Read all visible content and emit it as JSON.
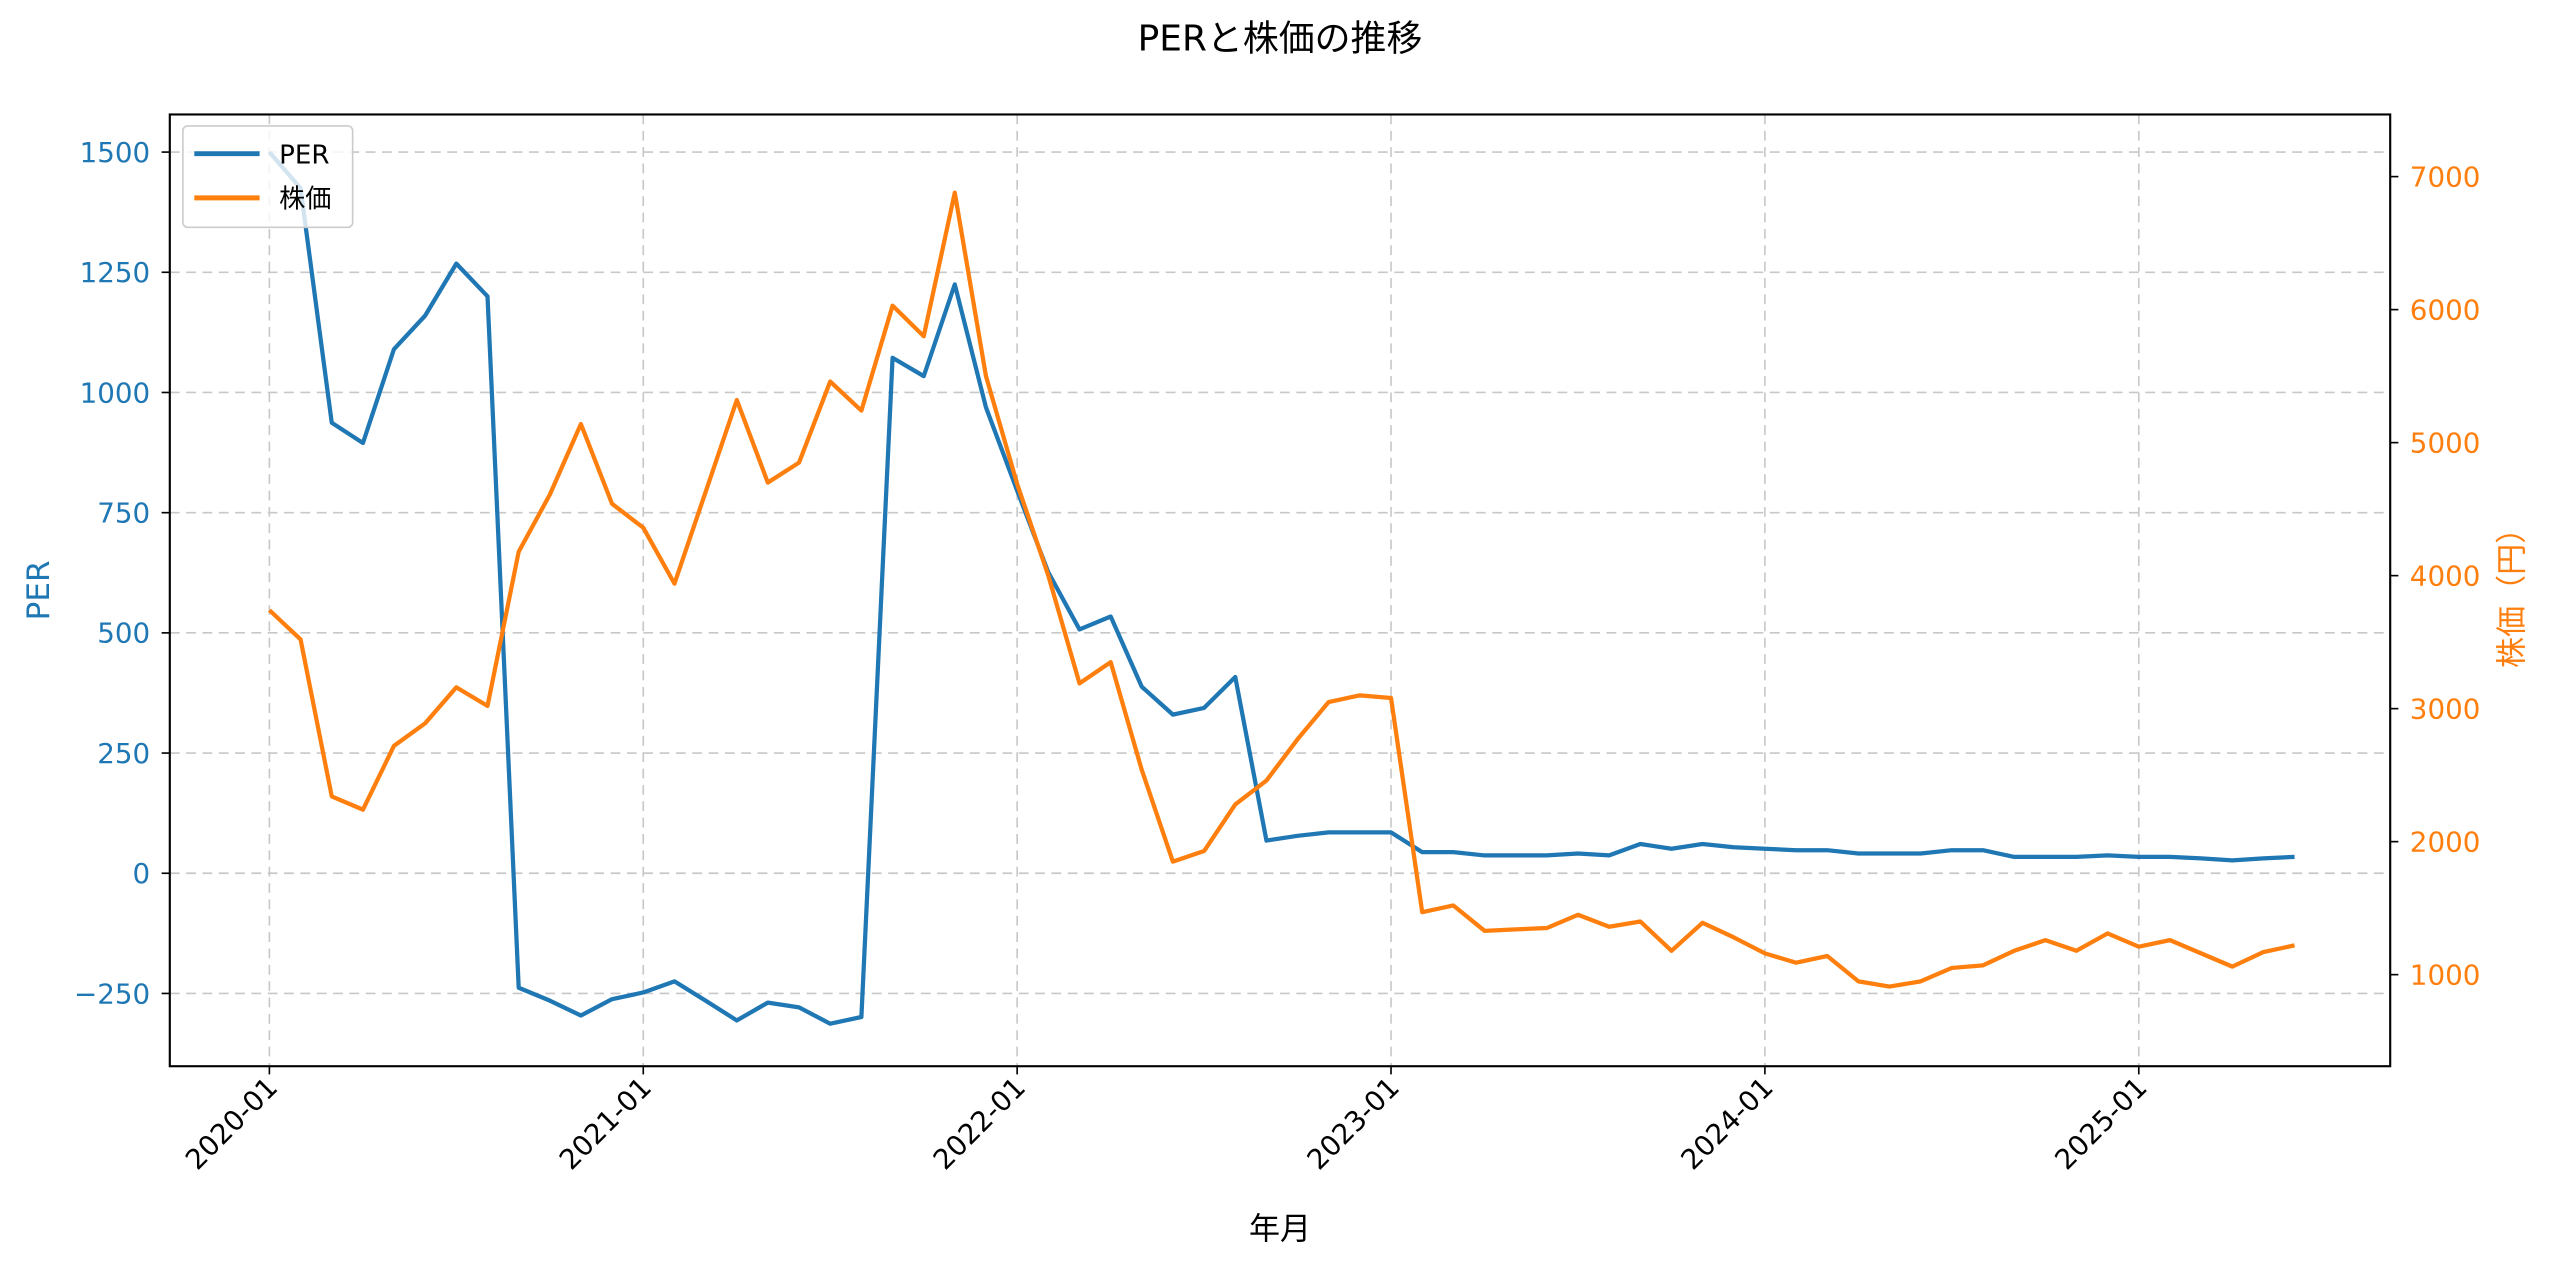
{
  "chart_data": {
    "type": "line",
    "title": "PERと株価の推移",
    "xlabel": "年月",
    "ylabel_left": "PER",
    "ylabel_right": "株価（円）",
    "x_tick_labels": [
      "2020-01",
      "2021-01",
      "2022-01",
      "2023-01",
      "2024-01",
      "2025-01"
    ],
    "y_left_ticks": [
      -250,
      0,
      250,
      500,
      750,
      1000,
      1250,
      1500
    ],
    "y_right_ticks": [
      1000,
      2000,
      3000,
      4000,
      5000,
      6000,
      7000
    ],
    "y_left_lim": [
      -400,
      1580
    ],
    "y_right_lim": [
      450,
      7450
    ],
    "grid": true,
    "legend_position": "upper left",
    "x": [
      "2020-01",
      "2020-02",
      "2020-03",
      "2020-04",
      "2020-05",
      "2020-06",
      "2020-07",
      "2020-08",
      "2020-09",
      "2020-10",
      "2020-11",
      "2020-12",
      "2021-01",
      "2021-02",
      "2021-03",
      "2021-04",
      "2021-05",
      "2021-06",
      "2021-07",
      "2021-08",
      "2021-09",
      "2021-10",
      "2021-11",
      "2021-12",
      "2022-01",
      "2022-02",
      "2022-03",
      "2022-04",
      "2022-05",
      "2022-06",
      "2022-07",
      "2022-08",
      "2022-09",
      "2022-10",
      "2022-11",
      "2022-12",
      "2023-01",
      "2023-02",
      "2023-03",
      "2023-04",
      "2023-05",
      "2023-06",
      "2023-07",
      "2023-08",
      "2023-09",
      "2023-10",
      "2023-11",
      "2023-12",
      "2024-01",
      "2024-02",
      "2024-03",
      "2024-04",
      "2024-05",
      "2024-06",
      "2024-07",
      "2024-08",
      "2024-09",
      "2024-10",
      "2024-11",
      "2024-12",
      "2025-01",
      "2025-02",
      "2025-03",
      "2025-04",
      "2025-05",
      "2025-06"
    ],
    "series": [
      {
        "name": "PER",
        "axis": "left",
        "color": "#1f77b4",
        "values": [
          1500,
          1425,
          937,
          895,
          1090,
          1160,
          1268,
          1200,
          -238,
          -265,
          -296,
          -262,
          -248,
          -225,
          -265,
          -306,
          -269,
          -279,
          -313,
          -299,
          1072,
          1034,
          1225,
          969,
          796,
          626,
          507,
          534,
          388,
          330,
          344,
          408,
          68,
          78,
          85,
          85,
          85,
          44,
          44,
          37,
          37,
          37,
          41,
          37,
          61,
          51,
          61,
          54,
          51,
          48,
          48,
          41,
          41,
          41,
          48,
          48,
          34,
          34,
          34,
          37,
          34,
          34,
          31,
          27,
          31,
          34
        ]
      },
      {
        "name": "株価",
        "axis": "right",
        "color": "#ff7f0e",
        "values": [
          3740,
          3520,
          2340,
          2240,
          2720,
          2890,
          3160,
          3020,
          4180,
          4610,
          5140,
          4540,
          4360,
          3940,
          4630,
          5320,
          4700,
          4850,
          5460,
          5240,
          6030,
          5800,
          6880,
          5500,
          4690,
          4000,
          3190,
          3350,
          2540,
          1850,
          1930,
          2280,
          2460,
          2770,
          3050,
          3100,
          3080,
          1470,
          1520,
          1330,
          1340,
          1350,
          1450,
          1360,
          1400,
          1180,
          1390,
          1280,
          1160,
          1090,
          1140,
          950,
          910,
          950,
          1050,
          1070,
          1180,
          1260,
          1180,
          1310,
          1210,
          1260,
          1160,
          1060,
          1170,
          1220
        ]
      }
    ]
  },
  "legend": {
    "items": [
      {
        "label": "PER",
        "color": "#1f77b4"
      },
      {
        "label": "株価",
        "color": "#ff7f0e"
      }
    ]
  }
}
